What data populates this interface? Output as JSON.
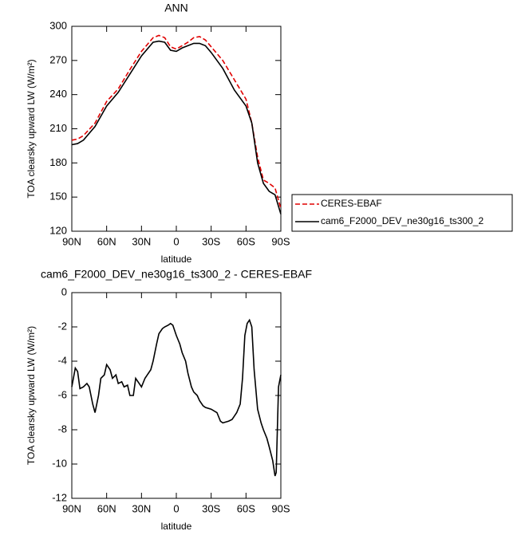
{
  "chart_data": [
    {
      "type": "line",
      "title": "ANN",
      "xlabel": "latitude",
      "ylabel": "TOA clearsky upward LW (W/m²)",
      "xlim": [
        90,
        -90
      ],
      "ylim": [
        120,
        300
      ],
      "xticks": [
        {
          "value": 90,
          "label": "90N"
        },
        {
          "value": 60,
          "label": "60N"
        },
        {
          "value": 30,
          "label": "30N"
        },
        0,
        {
          "value": -30,
          "label": "30S"
        },
        {
          "value": -60,
          "label": "60S"
        },
        {
          "value": -90,
          "label": "90S"
        }
      ],
      "yticks": [
        120,
        150,
        180,
        210,
        240,
        270,
        300
      ],
      "legend": "right",
      "x": [
        90,
        85,
        80,
        70,
        60,
        50,
        40,
        30,
        20,
        15,
        10,
        5,
        0,
        -5,
        -10,
        -15,
        -20,
        -25,
        -30,
        -40,
        -50,
        -60,
        -65,
        -70,
        -75,
        -80,
        -85,
        -90
      ],
      "series": [
        {
          "name": "CERES-EBAF",
          "color": "#e00000",
          "dash": true,
          "values": [
            200,
            201,
            204,
            215,
            234,
            245,
            262,
            278,
            290,
            292,
            290,
            282,
            280,
            283,
            286,
            290,
            291,
            288,
            282,
            270,
            253,
            236,
            215,
            185,
            165,
            162,
            158,
            140
          ]
        },
        {
          "name": "cam6_F2000_DEV_ne30g16_ts300_2",
          "color": "#000000",
          "dash": false,
          "values": [
            196,
            197,
            200,
            212,
            230,
            242,
            258,
            274,
            286,
            287,
            286,
            279,
            278,
            281,
            283,
            285,
            285,
            283,
            277,
            263,
            244,
            230,
            215,
            180,
            162,
            155,
            152,
            135
          ]
        }
      ]
    },
    {
      "type": "line",
      "title": "cam6_F2000_DEV_ne30g16_ts300_2 - CERES-EBAF",
      "xlabel": "latitude",
      "ylabel": "TOA clearsky upward LW (W/m²)",
      "xlim": [
        90,
        -90
      ],
      "ylim": [
        -12,
        0
      ],
      "xticks": [
        {
          "value": 90,
          "label": "90N"
        },
        {
          "value": 60,
          "label": "60N"
        },
        {
          "value": 30,
          "label": "30N"
        },
        0,
        {
          "value": -30,
          "label": "30S"
        },
        {
          "value": -60,
          "label": "60S"
        },
        {
          "value": -90,
          "label": "90S"
        }
      ],
      "yticks": [
        -12,
        -10,
        -8,
        -6,
        -4,
        -2,
        0
      ],
      "x": [
        90,
        87,
        85,
        83,
        80,
        77,
        75,
        72,
        70,
        67,
        65,
        62,
        60,
        57,
        55,
        52,
        50,
        47,
        45,
        42,
        40,
        37,
        35,
        32,
        30,
        27,
        25,
        22,
        20,
        17,
        15,
        12,
        10,
        7,
        5,
        3,
        0,
        -3,
        -5,
        -8,
        -10,
        -13,
        -15,
        -18,
        -20,
        -23,
        -25,
        -30,
        -35,
        -38,
        -40,
        -45,
        -48,
        -50,
        -52,
        -55,
        -57,
        -59,
        -61,
        -63,
        -65,
        -67,
        -70,
        -73,
        -75,
        -78,
        -80,
        -83,
        -85,
        -86,
        -87,
        -88,
        -90
      ],
      "series": [
        {
          "color": "#000000",
          "dash": false,
          "values": [
            -5.5,
            -4.4,
            -4.6,
            -5.6,
            -5.5,
            -5.3,
            -5.5,
            -6.5,
            -7.0,
            -6.0,
            -5.0,
            -4.8,
            -4.2,
            -4.5,
            -5.0,
            -4.8,
            -5.3,
            -5.2,
            -5.5,
            -5.4,
            -6.0,
            -6.0,
            -5.0,
            -5.3,
            -5.5,
            -5.0,
            -4.8,
            -4.5,
            -4.0,
            -3.0,
            -2.4,
            -2.1,
            -2.0,
            -1.9,
            -1.8,
            -1.9,
            -2.5,
            -3.0,
            -3.5,
            -4.0,
            -4.7,
            -5.5,
            -5.8,
            -6.0,
            -6.3,
            -6.6,
            -6.7,
            -6.8,
            -7.0,
            -7.5,
            -7.6,
            -7.5,
            -7.4,
            -7.2,
            -7.0,
            -6.5,
            -5.0,
            -2.5,
            -1.8,
            -1.6,
            -2.0,
            -4.5,
            -6.8,
            -7.6,
            -8.0,
            -8.5,
            -9.0,
            -9.8,
            -10.7,
            -10.5,
            -8.0,
            -5.5,
            -4.8
          ]
        }
      ]
    }
  ]
}
